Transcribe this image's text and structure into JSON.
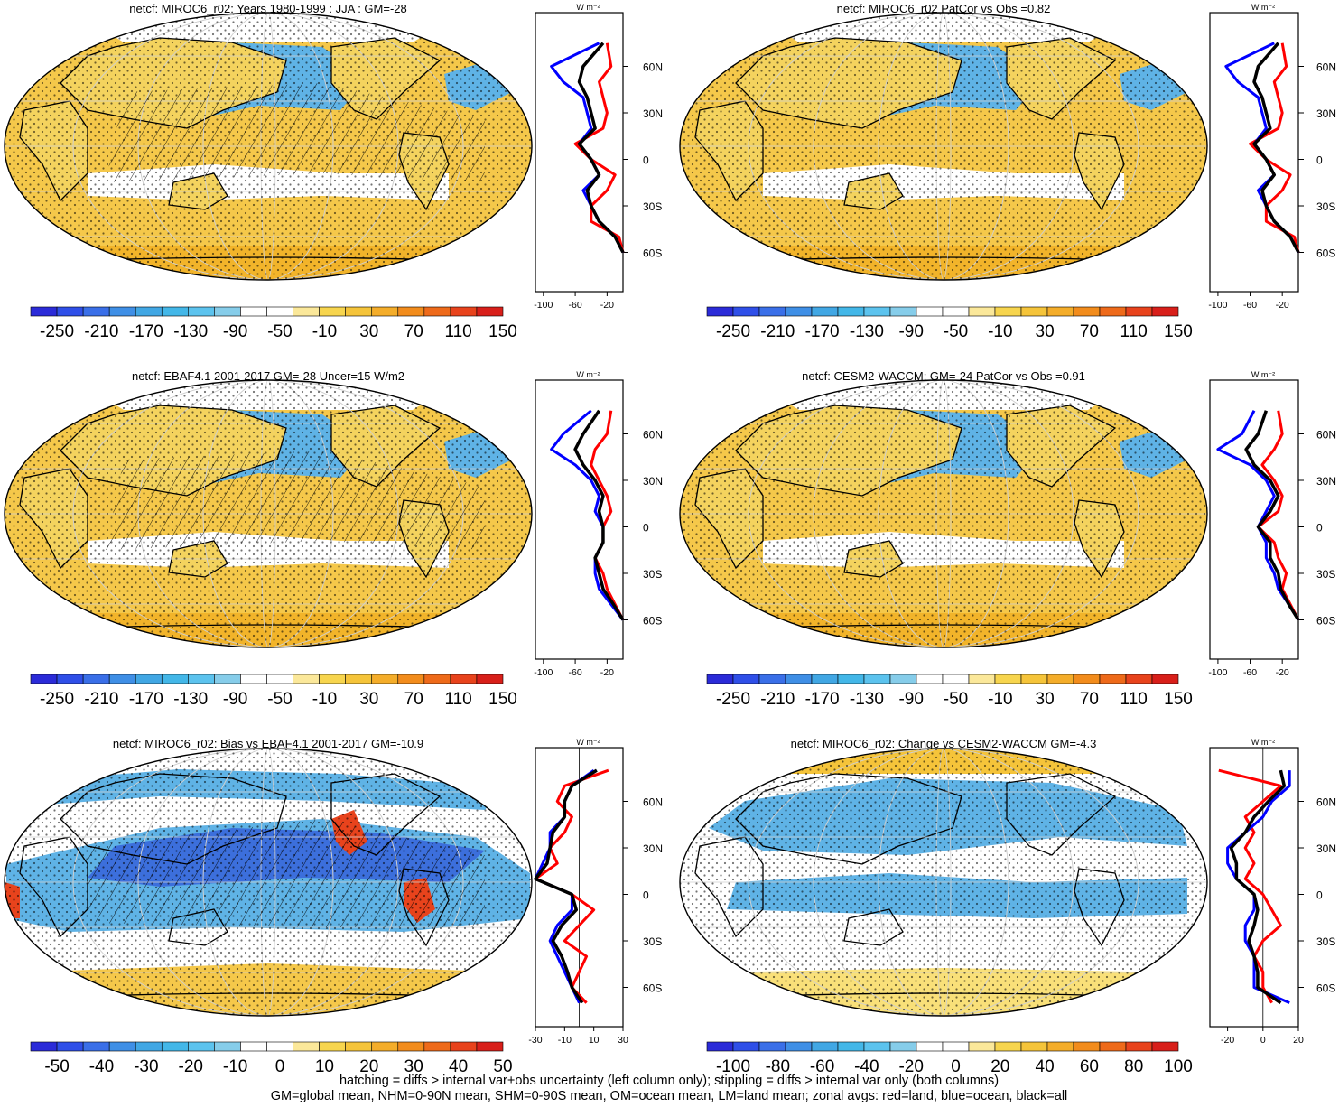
{
  "colors": {
    "ocean_cb": [
      "#2b2bd8",
      "#2f4fe8",
      "#3a6fe8",
      "#3f8fe6",
      "#41a7e4",
      "#43b7e8",
      "#5cc3ee",
      "#86cdea",
      "#ffffff",
      "#ffffff",
      "#fbe89a",
      "#f7d54e",
      "#f5c43a",
      "#f4ad2a",
      "#f28c1c",
      "#ee6a1a",
      "#e8431c",
      "#d81f1a"
    ],
    "land": "#f4d35e",
    "pos": "#f5c84a",
    "neg": "#5fb3e6",
    "neg_strong": "#3c6fdc",
    "red_line": "#ff0000",
    "blue_line": "#0000ff",
    "black_line": "#000000"
  },
  "panels": [
    {
      "id": "p1",
      "title": "netcf: MIROC6_r02: Years 1980-1999 : JJA : GM=-28",
      "colorbar": {
        "labels": [
          "-250",
          "-210",
          "-170",
          "-130",
          "-90",
          "-50",
          "-10",
          "30",
          "70",
          "110",
          "150"
        ]
      },
      "zonal": {
        "xticks": [
          "-100",
          "-60",
          "-20"
        ],
        "unit": "W m⁻²",
        "latlabels": [
          "60N",
          "30N",
          "0",
          "30S",
          "60S"
        ]
      },
      "variant": "mean",
      "hatch": true
    },
    {
      "id": "p2",
      "title": "netcf: MIROC6_r02 PatCor vs Obs =0.82",
      "colorbar": {
        "labels": [
          "-250",
          "-210",
          "-170",
          "-130",
          "-90",
          "-50",
          "-10",
          "30",
          "70",
          "110",
          "150"
        ]
      },
      "zonal": {
        "xticks": [
          "-100",
          "-60",
          "-20"
        ],
        "unit": "W m⁻²",
        "latlabels": [
          "60N",
          "30N",
          "0",
          "30S",
          "60S"
        ]
      },
      "variant": "mean",
      "hatch": false
    },
    {
      "id": "p3",
      "title": "netcf: EBAF4.1 2001-2017 GM=-28 Uncer=15 W/m2",
      "colorbar": {
        "labels": [
          "-250",
          "-210",
          "-170",
          "-130",
          "-90",
          "-50",
          "-10",
          "30",
          "70",
          "110",
          "150"
        ]
      },
      "zonal": {
        "xticks": [
          "-100",
          "-60",
          "-20"
        ],
        "unit": "W m⁻²",
        "latlabels": [
          "60N",
          "30N",
          "0",
          "30S",
          "60S"
        ]
      },
      "variant": "mean",
      "hatch": true
    },
    {
      "id": "p4",
      "title": "netcf: CESM2-WACCM: GM=-24 PatCor vs Obs =0.91",
      "colorbar": {
        "labels": [
          "-250",
          "-210",
          "-170",
          "-130",
          "-90",
          "-50",
          "-10",
          "30",
          "70",
          "110",
          "150"
        ]
      },
      "zonal": {
        "xticks": [
          "-100",
          "-60",
          "-20"
        ],
        "unit": "W m⁻²",
        "latlabels": [
          "60N",
          "30N",
          "0",
          "30S",
          "60S"
        ]
      },
      "variant": "mean",
      "hatch": false
    },
    {
      "id": "p5",
      "title": "netcf: MIROC6_r02: Bias vs EBAF4.1 2001-2017 GM=-10.9",
      "colorbar": {
        "labels": [
          "-50",
          "-40",
          "-30",
          "-20",
          "-10",
          "0",
          "10",
          "20",
          "30",
          "40",
          "50"
        ]
      },
      "zonal": {
        "xticks": [
          "-30",
          "-10",
          "10",
          "30"
        ],
        "unit": "W m⁻²",
        "latlabels": [
          "60N",
          "30N",
          "0",
          "30S",
          "60S"
        ]
      },
      "variant": "bias",
      "hatch": true
    },
    {
      "id": "p6",
      "title": "netcf: MIROC6_r02: Change vs CESM2-WACCM GM=-4.3",
      "colorbar": {
        "labels": [
          "-100",
          "-80",
          "-60",
          "-40",
          "-20",
          "0",
          "20",
          "40",
          "60",
          "80",
          "100"
        ]
      },
      "zonal": {
        "xticks": [
          "-20",
          "0",
          "20"
        ],
        "unit": "W m⁻²",
        "latlabels": [
          "60N",
          "30N",
          "0",
          "30S",
          "60S"
        ]
      },
      "variant": "change",
      "hatch": false
    }
  ],
  "footer": {
    "line1": "hatching = diffs > internal var+obs uncertainty (left column only); stippling = diffs > internal var only (both columns)",
    "line2": "GM=global mean, NHM=0-90N mean, SHM=0-90S mean, OM=ocean mean, LM=land mean; zonal avgs: red=land, blue=ocean, black=all"
  },
  "chart_data": [
    {
      "type": "heatmap",
      "title": "netcf: MIROC6_r02: Years 1980-1999 : JJA : GM=-28",
      "colorbar_ticks": [
        -250,
        -210,
        -170,
        -130,
        -90,
        -50,
        -10,
        30,
        70,
        110,
        150
      ],
      "zonal_mean": {
        "lat": [
          75,
          60,
          50,
          40,
          30,
          20,
          10,
          0,
          -10,
          -20,
          -30,
          -40,
          -50,
          -60
        ],
        "land": [
          -20,
          -15,
          -30,
          -25,
          -20,
          -25,
          -60,
          -40,
          -10,
          -20,
          -40,
          -40,
          -5,
          0
        ],
        "ocean": [
          -30,
          -90,
          -75,
          -50,
          -45,
          -40,
          -55,
          -40,
          -30,
          -50,
          -40,
          -30,
          -10,
          0
        ],
        "all": [
          -25,
          -50,
          -55,
          -45,
          -40,
          -35,
          -55,
          -40,
          -30,
          -45,
          -40,
          -30,
          -10,
          0
        ],
        "xticks": [
          -100,
          -60,
          -20
        ]
      }
    },
    {
      "type": "heatmap",
      "title": "netcf: MIROC6_r02 PatCor vs Obs =0.82",
      "colorbar_ticks": [
        -250,
        -210,
        -170,
        -130,
        -90,
        -50,
        -10,
        30,
        70,
        110,
        150
      ],
      "zonal_mean": {
        "lat": [
          75,
          60,
          50,
          40,
          30,
          20,
          10,
          0,
          -10,
          -20,
          -30,
          -40,
          -50,
          -60
        ],
        "land": [
          -20,
          -15,
          -30,
          -25,
          -20,
          -25,
          -60,
          -40,
          -10,
          -20,
          -40,
          -40,
          -5,
          0
        ],
        "ocean": [
          -30,
          -90,
          -75,
          -50,
          -45,
          -40,
          -55,
          -40,
          -30,
          -50,
          -40,
          -30,
          -10,
          0
        ],
        "all": [
          -25,
          -50,
          -55,
          -45,
          -40,
          -35,
          -55,
          -40,
          -30,
          -45,
          -40,
          -30,
          -10,
          0
        ],
        "xticks": [
          -100,
          -60,
          -20
        ]
      }
    },
    {
      "type": "heatmap",
      "title": "netcf: EBAF4.1 2001-2017 GM=-28 Uncer=15 W/m2",
      "colorbar_ticks": [
        -250,
        -210,
        -170,
        -130,
        -90,
        -50,
        -10,
        30,
        70,
        110,
        150
      ],
      "zonal_mean": {
        "lat": [
          75,
          60,
          50,
          40,
          30,
          20,
          10,
          0,
          -10,
          -20,
          -30,
          -40,
          -50,
          -60
        ],
        "land": [
          -15,
          -20,
          -35,
          -40,
          -30,
          -20,
          -15,
          -25,
          -25,
          -35,
          -25,
          -20,
          -10,
          0
        ],
        "ocean": [
          -40,
          -75,
          -90,
          -60,
          -40,
          -30,
          -35,
          -25,
          -25,
          -35,
          -35,
          -30,
          -15,
          0
        ],
        "all": [
          -30,
          -50,
          -60,
          -50,
          -35,
          -25,
          -30,
          -25,
          -25,
          -35,
          -30,
          -25,
          -12,
          0
        ],
        "xticks": [
          -100,
          -60,
          -20
        ]
      }
    },
    {
      "type": "heatmap",
      "title": "netcf: CESM2-WACCM: GM=-24 PatCor vs Obs =0.91",
      "colorbar_ticks": [
        -250,
        -210,
        -170,
        -130,
        -90,
        -50,
        -10,
        30,
        70,
        110,
        150
      ],
      "zonal_mean": {
        "lat": [
          75,
          60,
          50,
          40,
          30,
          20,
          10,
          0,
          -10,
          -20,
          -30,
          -40,
          -50,
          -60
        ],
        "land": [
          -25,
          -20,
          -30,
          -45,
          -30,
          -20,
          -25,
          -50,
          -30,
          -25,
          -15,
          -20,
          -10,
          0
        ],
        "ocean": [
          -55,
          -70,
          -100,
          -60,
          -40,
          -30,
          -40,
          -50,
          -40,
          -40,
          -30,
          -25,
          -12,
          0
        ],
        "all": [
          -40,
          -50,
          -65,
          -55,
          -35,
          -25,
          -35,
          -50,
          -35,
          -35,
          -25,
          -22,
          -12,
          0
        ],
        "xticks": [
          -100,
          -60,
          -20
        ]
      }
    },
    {
      "type": "heatmap",
      "title": "netcf: MIROC6_r02: Bias vs EBAF4.1 2001-2017 GM=-10.9",
      "colorbar_ticks": [
        -50,
        -40,
        -30,
        -20,
        -10,
        0,
        10,
        20,
        30,
        40,
        50
      ],
      "zonal_mean": {
        "lat": [
          80,
          70,
          60,
          50,
          40,
          30,
          20,
          10,
          0,
          -10,
          -20,
          -30,
          -40,
          -50,
          -60,
          -70
        ],
        "land": [
          20,
          -10,
          -15,
          -5,
          -10,
          -20,
          -15,
          -30,
          -5,
          10,
          0,
          -10,
          5,
          0,
          -5,
          5
        ],
        "ocean": [
          10,
          -5,
          -10,
          -10,
          -20,
          -20,
          -25,
          -30,
          -5,
          -5,
          -15,
          -20,
          -15,
          -10,
          -5,
          0
        ],
        "all": [
          12,
          -5,
          -10,
          -10,
          -18,
          -20,
          -22,
          -30,
          -5,
          -2,
          -12,
          -18,
          -12,
          -8,
          -5,
          2
        ],
        "xticks": [
          -30,
          -10,
          10,
          30
        ]
      }
    },
    {
      "type": "heatmap",
      "title": "netcf: MIROC6_r02: Change vs CESM2-WACCM GM=-4.3",
      "colorbar_ticks": [
        -100,
        -80,
        -60,
        -40,
        -20,
        0,
        20,
        40,
        60,
        80,
        100
      ],
      "zonal_mean": {
        "lat": [
          80,
          70,
          60,
          50,
          40,
          30,
          20,
          10,
          0,
          -10,
          -20,
          -30,
          -40,
          -50,
          -60,
          -70
        ],
        "land": [
          -25,
          10,
          0,
          -10,
          -5,
          -10,
          -5,
          -10,
          0,
          5,
          10,
          0,
          -5,
          0,
          0,
          5
        ],
        "ocean": [
          15,
          15,
          5,
          0,
          -10,
          -20,
          -20,
          -15,
          -5,
          -5,
          -10,
          -10,
          -5,
          -5,
          -5,
          15
        ],
        "all": [
          10,
          12,
          3,
          -5,
          -10,
          -18,
          -15,
          -15,
          -5,
          -3,
          -5,
          -8,
          -5,
          -3,
          -3,
          10
        ],
        "xticks": [
          -20,
          0,
          20
        ]
      }
    }
  ]
}
